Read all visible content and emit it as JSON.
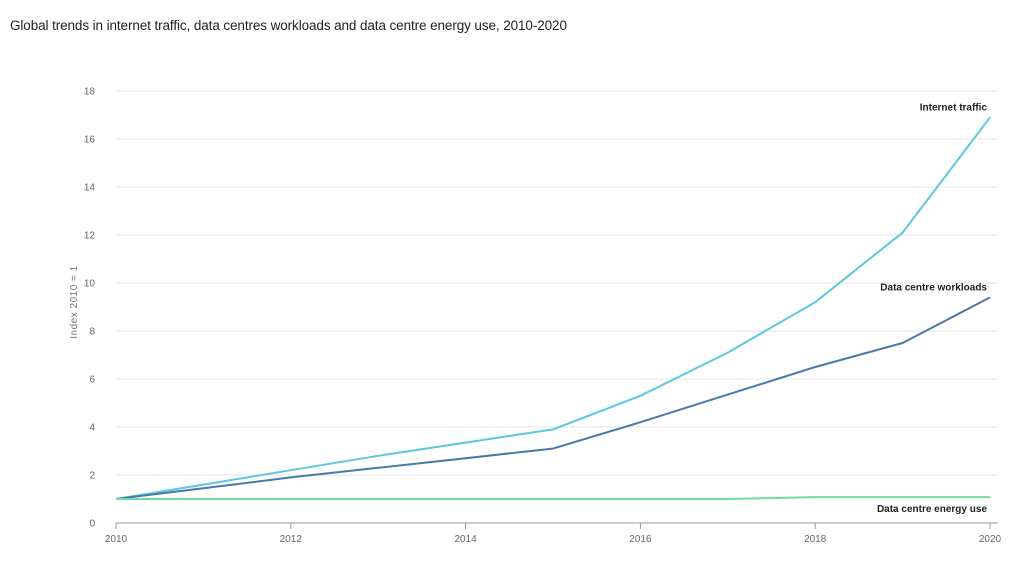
{
  "chart_data": {
    "type": "line",
    "title": "Global trends in internet traffic, data centres workloads and data centre energy use, 2010-2020",
    "xlabel": "",
    "ylabel": "Index 2010 = 1",
    "x": [
      2010,
      2011,
      2012,
      2013,
      2014,
      2015,
      2016,
      2017,
      2018,
      2019,
      2020
    ],
    "xticks": [
      2010,
      2012,
      2014,
      2016,
      2018,
      2020
    ],
    "yticks": [
      0,
      2,
      4,
      6,
      8,
      10,
      12,
      14,
      16,
      18
    ],
    "xlim": [
      2010,
      2020
    ],
    "ylim": [
      0,
      18
    ],
    "grid": true,
    "series": [
      {
        "name": "Internet traffic",
        "color": "#5bc8e0",
        "values": [
          1,
          1.6,
          2.2,
          2.8,
          3.35,
          3.9,
          5.3,
          7.1,
          9.2,
          12.1,
          16.9
        ]
      },
      {
        "name": "Data centre workloads",
        "color": "#4a78a8",
        "values": [
          1,
          1.45,
          1.9,
          2.3,
          2.7,
          3.1,
          4.2,
          5.35,
          6.5,
          7.5,
          9.4
        ]
      },
      {
        "name": "Data centre energy use",
        "color": "#6fdb9c",
        "values": [
          1,
          1,
          1,
          1,
          1,
          1,
          1,
          1,
          1.08,
          1.08,
          1.08
        ]
      }
    ]
  }
}
